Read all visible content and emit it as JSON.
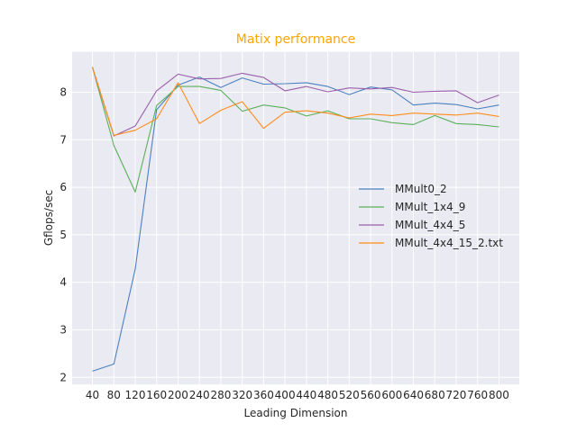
{
  "chart_data": {
    "type": "line",
    "title": "Matix performance",
    "title_color": "#ffa500",
    "xlabel": "Leading Dimension",
    "ylabel": "Gflops/sec",
    "x": [
      40,
      80,
      120,
      160,
      200,
      240,
      280,
      320,
      360,
      400,
      440,
      480,
      520,
      560,
      600,
      640,
      680,
      720,
      760,
      800
    ],
    "xticks": [
      40,
      80,
      120,
      160,
      200,
      240,
      280,
      320,
      360,
      400,
      440,
      480,
      520,
      560,
      600,
      640,
      680,
      720,
      760,
      800
    ],
    "yticks": [
      2,
      3,
      4,
      5,
      6,
      7,
      8
    ],
    "xlim": [
      2,
      838
    ],
    "ylim": [
      1.85,
      8.85
    ],
    "grid": true,
    "legend_position": "center-right",
    "series": [
      {
        "name": "MMult0_2",
        "color": "#4c81bf",
        "values": [
          2.13,
          2.28,
          4.28,
          7.63,
          8.15,
          8.32,
          8.1,
          8.3,
          8.17,
          8.18,
          8.2,
          8.12,
          7.95,
          8.11,
          8.05,
          7.73,
          7.77,
          7.74,
          7.65,
          7.73
        ]
      },
      {
        "name": "MMult_1x4_9",
        "color": "#5bb05b",
        "values": [
          8.53,
          6.88,
          5.9,
          7.72,
          8.12,
          8.12,
          8.04,
          7.6,
          7.73,
          7.67,
          7.5,
          7.61,
          7.44,
          7.44,
          7.36,
          7.32,
          7.51,
          7.34,
          7.32,
          7.27
        ]
      },
      {
        "name": "MMult_4x4_5",
        "color": "#9a5fab",
        "values": [
          8.53,
          7.08,
          7.29,
          8.03,
          8.38,
          8.28,
          8.29,
          8.4,
          8.31,
          8.03,
          8.12,
          8.01,
          8.09,
          8.07,
          8.1,
          8.0,
          8.02,
          8.03,
          7.78,
          7.94
        ]
      },
      {
        "name": "MMult_4x4_15_2.txt",
        "color": "#ff8c1a",
        "values": [
          8.53,
          7.09,
          7.2,
          7.44,
          8.2,
          7.34,
          7.62,
          7.8,
          7.24,
          7.58,
          7.61,
          7.56,
          7.46,
          7.54,
          7.51,
          7.56,
          7.54,
          7.52,
          7.56,
          7.49
        ]
      }
    ]
  }
}
